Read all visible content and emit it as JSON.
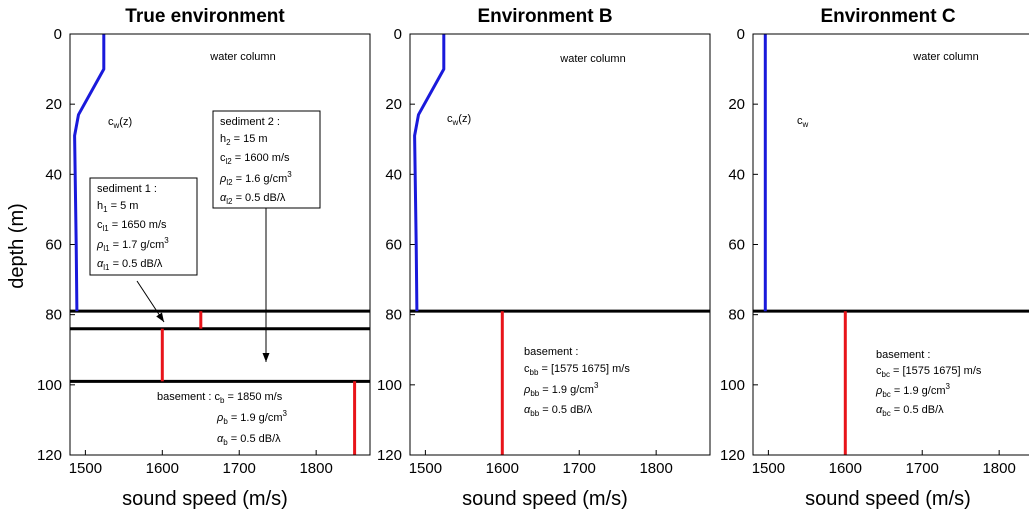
{
  "chart_data": [
    {
      "type": "line",
      "title": "True environment",
      "xlabel": "sound speed (m/s)",
      "ylabel": "depth (m)",
      "xlim": [
        1480,
        1870
      ],
      "ylim": [
        120,
        0
      ],
      "y_inverted": true,
      "xticks": [
        "1500",
        "1600",
        "1700",
        "1800"
      ],
      "yticks": [
        "0",
        "20",
        "40",
        "60",
        "80",
        "100",
        "120"
      ],
      "grid": false,
      "layers": [
        {
          "name": "water column",
          "x": [
            1524,
            1524,
            1491,
            1486,
            1488,
            1489
          ],
          "y": [
            0,
            10,
            23,
            29,
            60,
            79
          ],
          "color": "#1a1adb"
        },
        {
          "name": "sediment 1",
          "x": [
            1650,
            1650
          ],
          "y": [
            79,
            84
          ],
          "color": "#e8141a"
        },
        {
          "name": "sediment 2",
          "x": [
            1600,
            1600
          ],
          "y": [
            84,
            99
          ],
          "color": "#e8141a"
        },
        {
          "name": "basement",
          "x": [
            1850,
            1850
          ],
          "y": [
            99,
            120
          ],
          "color": "#e8141a"
        }
      ],
      "interfaces": [
        79,
        84,
        99
      ],
      "annotations": {
        "water_column": "water column",
        "cw_label": "c",
        "cw_sub": "w",
        "cw_suffix": "(z)",
        "basement": {
          "prefix": "basement : c",
          "c_sub": "b",
          "c_val": " = 1850 m/s",
          "rho_sym": "ρ",
          "rho_sub": "b",
          "rho_val": " = 1.9 g/cm",
          "rho_sup": "3",
          "alpha_sym": "α",
          "alpha_sub": "b",
          "alpha_val": " = 0.5 dB/λ"
        }
      },
      "boxes": [
        {
          "title": "sediment 1 :",
          "h_sym": "h",
          "h_sub": "1",
          "h_val": " = 5 m",
          "c_sym": "c",
          "c_sub": "l1",
          "c_val": " = 1650 m/s",
          "rho_sym": "ρ",
          "rho_sub": "l1",
          "rho_val": " = 1.7 g/cm",
          "rho_sup": "3",
          "alpha_sym": "α",
          "alpha_sub": "l1",
          "alpha_val": " = 0.5 dB/λ"
        },
        {
          "title": "sediment 2 :",
          "h_sym": "h",
          "h_sub": "2",
          "h_val": " = 15 m",
          "c_sym": "c",
          "c_sub": "l2",
          "c_val": " = 1600 m/s",
          "rho_sym": "ρ",
          "rho_sub": "l2",
          "rho_val": " = 1.6 g/cm",
          "rho_sup": "3",
          "alpha_sym": "α",
          "alpha_sub": "l2",
          "alpha_val": " = 0.5 dB/λ"
        }
      ]
    },
    {
      "type": "line",
      "title": "Environment B",
      "xlabel": "sound speed (m/s)",
      "ylabel": "",
      "xlim": [
        1480,
        1870
      ],
      "ylim": [
        120,
        0
      ],
      "y_inverted": true,
      "xticks": [
        "1500",
        "1600",
        "1700",
        "1800"
      ],
      "yticks": [
        "0",
        "20",
        "40",
        "60",
        "80",
        "100",
        "120"
      ],
      "grid": false,
      "layers": [
        {
          "name": "water column",
          "x": [
            1524,
            1524,
            1491,
            1486,
            1488,
            1489
          ],
          "y": [
            0,
            10,
            23,
            29,
            60,
            79
          ],
          "color": "#1a1adb"
        },
        {
          "name": "basement",
          "x": [
            1600,
            1600
          ],
          "y": [
            79,
            120
          ],
          "color": "#e8141a"
        }
      ],
      "interfaces": [
        79
      ],
      "annotations": {
        "water_column": "water column",
        "cw_label": "c",
        "cw_sub": "w",
        "cw_suffix": "(z)",
        "basement": {
          "title": "basement :",
          "c_sym": "c",
          "c_sub": "bb",
          "c_val": " = [1575 1675] m/s",
          "rho_sym": "ρ",
          "rho_sub": "bb",
          "rho_val": " = 1.9 g/cm",
          "rho_sup": "3",
          "alpha_sym": "α",
          "alpha_sub": "bb",
          "alpha_val": " = 0.5 dB/λ"
        }
      }
    },
    {
      "type": "line",
      "title": "Environment C",
      "xlabel": "sound speed (m/s)",
      "ylabel": "",
      "xlim": [
        1480,
        1870
      ],
      "ylim": [
        120,
        0
      ],
      "y_inverted": true,
      "xticks": [
        "1500",
        "1600",
        "1700",
        "1800"
      ],
      "yticks": [
        "0",
        "20",
        "40",
        "60",
        "80",
        "100",
        "120"
      ],
      "grid": false,
      "layers": [
        {
          "name": "water column",
          "x": [
            1496,
            1496
          ],
          "y": [
            0,
            79
          ],
          "color": "#1a1adb"
        },
        {
          "name": "basement",
          "x": [
            1600,
            1600
          ],
          "y": [
            79,
            120
          ],
          "color": "#e8141a"
        }
      ],
      "interfaces": [
        79
      ],
      "annotations": {
        "water_column": "water column",
        "cw_label": "c",
        "cw_sub": "w",
        "cw_suffix": "",
        "basement": {
          "title": "basement :",
          "c_sym": "c",
          "c_sub": "bc",
          "c_val": " = [1575 1675] m/s",
          "rho_sym": "ρ",
          "rho_sub": "bc",
          "rho_val": " = 1.9 g/cm",
          "rho_sup": "3",
          "alpha_sym": "α",
          "alpha_sub": "bc",
          "alpha_val": " = 0.5 dB/λ"
        }
      }
    }
  ]
}
